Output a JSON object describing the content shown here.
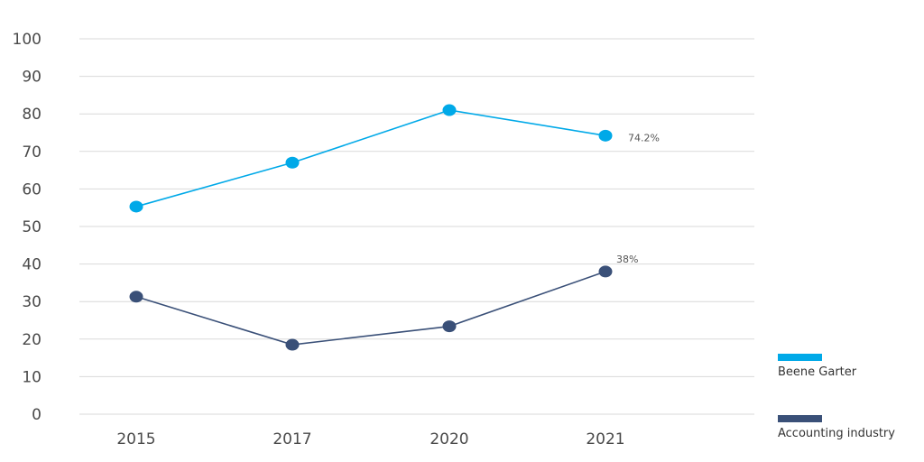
{
  "chart_data": {
    "type": "line",
    "categories": [
      "2015",
      "2017",
      "2020",
      "2021"
    ],
    "ylim": [
      0,
      100
    ],
    "yticks": [
      0,
      10,
      20,
      30,
      40,
      50,
      60,
      70,
      80,
      90,
      100
    ],
    "grid": true,
    "legend_position": "bottom-right",
    "series": [
      {
        "name": "Beene Garter",
        "color": "#00A9E8",
        "values": [
          55.3,
          67,
          81,
          74.2
        ],
        "end_label": "74.2%"
      },
      {
        "name": "Accounting industry",
        "color": "#3A5078",
        "values": [
          31.3,
          18.5,
          23.4,
          38
        ],
        "end_label": "38%"
      }
    ]
  }
}
